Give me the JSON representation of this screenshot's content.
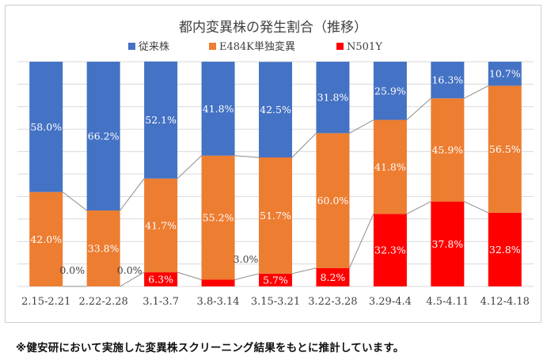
{
  "chart_data": {
    "type": "bar",
    "stacked": true,
    "title": "都内変異株の発生割合（推移）",
    "categories": [
      "2.15-2.21",
      "2.22-2.28",
      "3.1-3.7",
      "3.8-3.14",
      "3.15-3.21",
      "3.22-3.28",
      "3.29-4.4",
      "4.5-4.11",
      "4.12-4.18"
    ],
    "series": [
      {
        "name": "N501Y",
        "color": "#ff0000",
        "values": [
          0.0,
          0.0,
          6.3,
          3.0,
          5.7,
          8.2,
          32.3,
          37.8,
          32.8
        ],
        "labels": [
          "0.0%",
          "0.0%",
          "6.3%",
          "3.0%",
          "5.7%",
          "8.2%",
          "32.3%",
          "37.8%",
          "32.8%"
        ]
      },
      {
        "name": "E484K単独変異",
        "color": "#ed7d31",
        "values": [
          42.0,
          33.8,
          41.7,
          55.2,
          51.7,
          60.0,
          41.8,
          45.9,
          56.5
        ],
        "labels": [
          "42.0%",
          "33.8%",
          "41.7%",
          "55.2%",
          "51.7%",
          "60.0%",
          "41.8%",
          "45.9%",
          "56.5%"
        ]
      },
      {
        "name": "従来株",
        "color": "#4472c4",
        "values": [
          58.0,
          66.2,
          52.1,
          41.8,
          42.5,
          31.8,
          25.9,
          16.3,
          10.7
        ],
        "labels": [
          "58.0%",
          "66.2%",
          "52.1%",
          "41.8%",
          "42.5%",
          "31.8%",
          "25.9%",
          "16.3%",
          "10.7%"
        ]
      }
    ],
    "legend_order": [
      "従来株",
      "E484K単独変異",
      "N501Y"
    ],
    "legend_position": "top",
    "ylim": [
      0,
      100
    ],
    "grid": true,
    "series_lines": true
  },
  "footnote": "※健安研において実施した変異株スクリーニング結果をもとに推計しています。"
}
